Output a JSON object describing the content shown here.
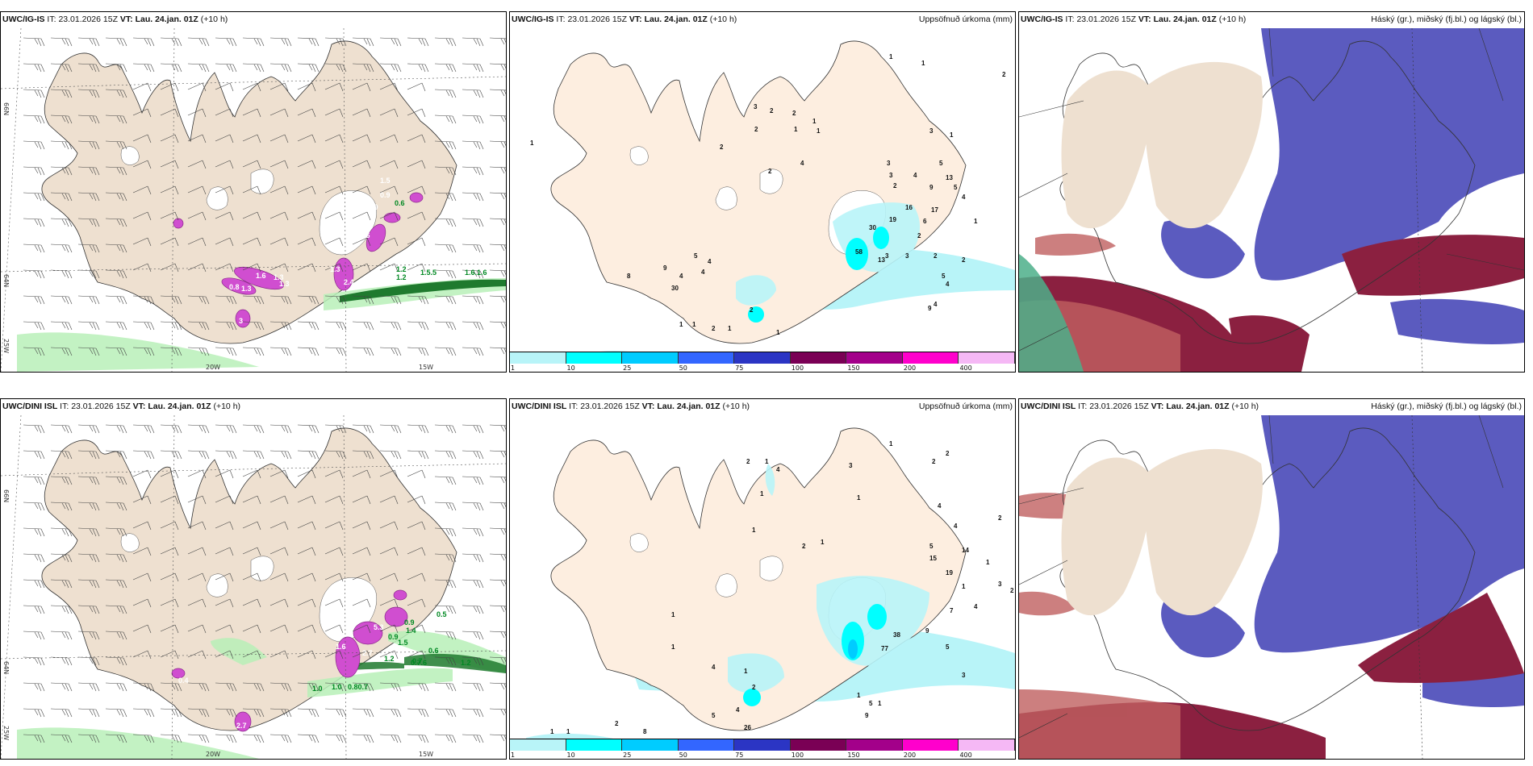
{
  "header_parts": {
    "it_label": "IT:",
    "it_value": "23.01.2026 15Z",
    "vt_label": "VT:",
    "vt_value": "Lau. 24.jan. 01Z",
    "lead": "(+10 h)"
  },
  "panels": {
    "top_left": {
      "model": "UWC/IG-IS"
    },
    "top_middle": {
      "model": "UWC/IG-IS",
      "title": "Uppsöfnuð úrkoma (mm)"
    },
    "top_right": {
      "model": "UWC/IG-IS",
      "title": "Háský (gr.), miðský (fj.bl.) og lágský (bl.)"
    },
    "bottom_left": {
      "model": "UWC/DINI ISL"
    },
    "bottom_middle": {
      "model": "UWC/DINI ISL",
      "title": "Uppsöfnuð úrkoma (mm)"
    },
    "bottom_right": {
      "model": "UWC/DINI ISL",
      "title": "Háský (gr.), miðský (fj.bl.) og lágský (bl.)"
    }
  },
  "axis_labels": {
    "lat_66": "66N",
    "lat_64": "64N",
    "lon_25": "25W",
    "lon_20": "20W",
    "lon_15": "15W"
  },
  "colorbar": {
    "colors": [
      "#b8f4f8",
      "#00ffff",
      "#00ccff",
      "#3366ff",
      "#2b35c4",
      "#7a0055",
      "#a3008a",
      "#ff00cc",
      "#f5b8f5"
    ],
    "ticks": [
      "1",
      "10",
      "25",
      "50",
      "75",
      "100",
      "150",
      "200",
      "400"
    ]
  },
  "precip_labels_top": [
    "1",
    "1",
    "2",
    "3",
    "2",
    "2",
    "1",
    "1",
    "2",
    "1",
    "3",
    "1",
    "2",
    "4",
    "3",
    "5",
    "13",
    "4",
    "5",
    "3",
    "9",
    "4",
    "2",
    "17",
    "16",
    "19",
    "6",
    "30",
    "58",
    "13",
    "2",
    "1",
    "3",
    "3",
    "2",
    "2",
    "5",
    "4",
    "4",
    "9",
    "2",
    "1",
    "1",
    "5",
    "4",
    "4",
    "9",
    "4",
    "8",
    "30",
    "1",
    "2",
    "1",
    "2",
    "1"
  ],
  "precip_labels_bottom": [
    "1",
    "2",
    "2",
    "2",
    "1",
    "3",
    "1",
    "1",
    "4",
    "1",
    "1",
    "2",
    "2",
    "4",
    "4",
    "5",
    "14",
    "15",
    "19",
    "1",
    "3",
    "1",
    "2",
    "4",
    "38",
    "7",
    "77",
    "9",
    "5",
    "5",
    "4",
    "4",
    "2",
    "1",
    "1",
    "1",
    "3",
    "9",
    "5",
    "8",
    "26",
    "1",
    "1",
    "2",
    "1",
    "1"
  ],
  "snow_labels_top": [
    "0.8",
    "1.3",
    "1.6",
    "1.3",
    "1.3",
    "3",
    "1.3",
    "1.6",
    "0.9",
    "0.6",
    "0.9",
    "1.5",
    "1.3",
    "2.4",
    "1.2",
    "1.2",
    "1.5.5",
    "1.6.1.6"
  ],
  "snow_labels_bottom": [
    "0.4",
    "2.7",
    "1.6",
    "2.7",
    "5.3",
    "0.9",
    "1.4",
    "1.5",
    "1.2",
    "0.7",
    "0.5",
    "0.6",
    "0.7.6",
    "1.2",
    "1.0",
    "1.0",
    "0.80.7",
    "0.9"
  ],
  "colors": {
    "land": "#eee0d0",
    "land_precip": "#fdeee0",
    "sea": "#ffffff",
    "low_cloud": "#5b5bbf",
    "mid_cloud": "#8b2040",
    "high_cloud": "#4caf8a",
    "snow_magenta": "#d04ed0",
    "rain_green": "#2a8a3a"
  }
}
